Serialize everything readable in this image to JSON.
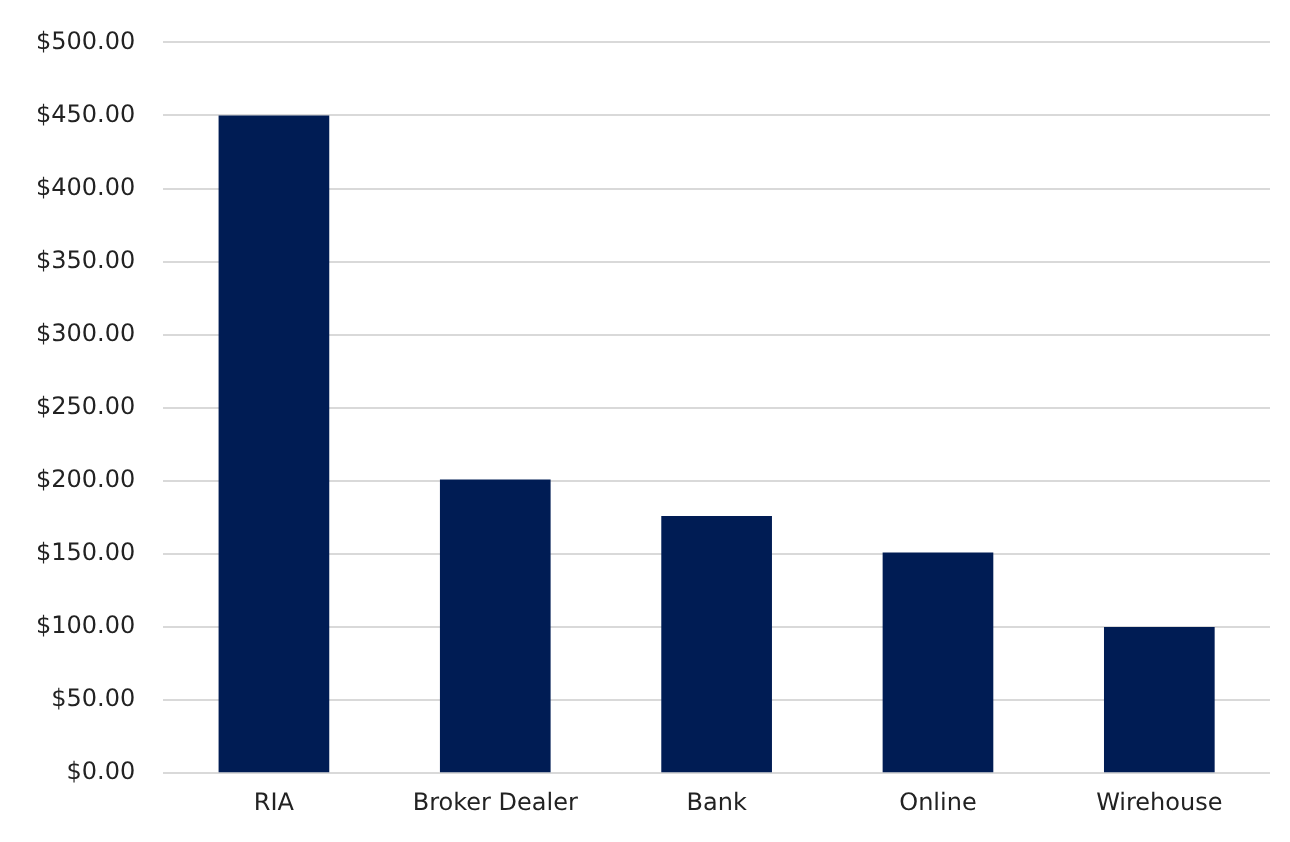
{
  "chart_data": {
    "type": "bar",
    "categories": [
      "RIA",
      "Broker Dealer",
      "Bank",
      "Online",
      "Wirehouse"
    ],
    "values": [
      450,
      201,
      176,
      151,
      100
    ],
    "color": "#001c54",
    "ylim": [
      0,
      500
    ],
    "yticks": [
      {
        "value": 0,
        "label": "$0.00"
      },
      {
        "value": 50,
        "label": "$50.00"
      },
      {
        "value": 100,
        "label": "$100.00"
      },
      {
        "value": 150,
        "label": "$150.00"
      },
      {
        "value": 200,
        "label": "$200.00"
      },
      {
        "value": 250,
        "label": "$250.00"
      },
      {
        "value": 300,
        "label": "$300.00"
      },
      {
        "value": 350,
        "label": "$350.00"
      },
      {
        "value": 400,
        "label": "$400.00"
      },
      {
        "value": 450,
        "label": "$450.00"
      },
      {
        "value": 500,
        "label": "$500.00"
      }
    ],
    "grid": "y",
    "legend": false
  }
}
